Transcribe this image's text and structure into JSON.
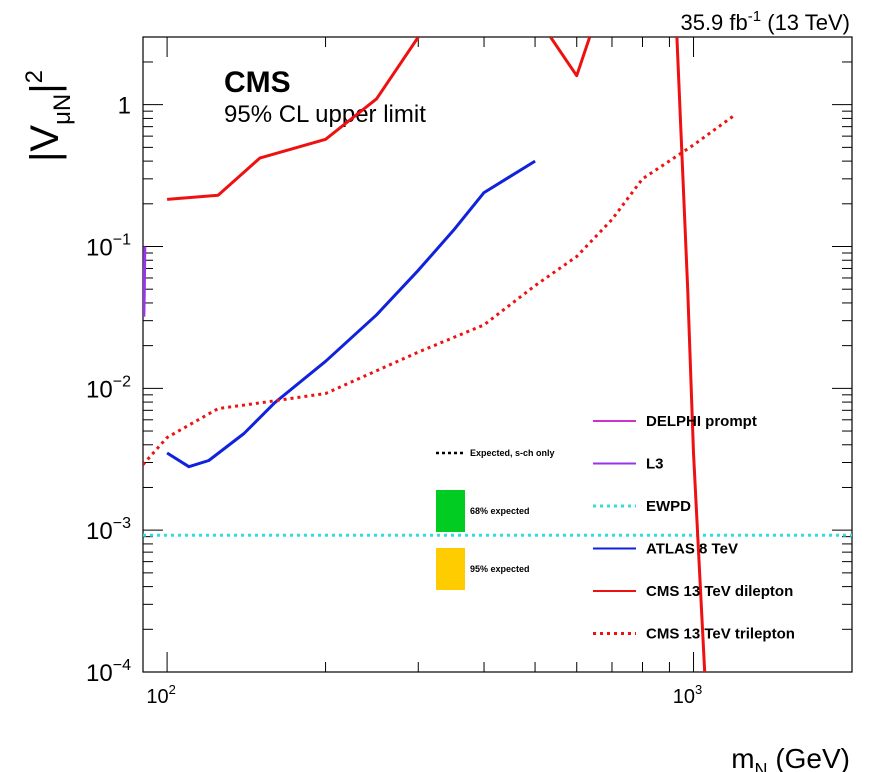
{
  "header": {
    "lumi": "35.9",
    "lumi_unit": "fb",
    "lumi_exp": "-1",
    "energy": "(13 TeV)"
  },
  "labels": {
    "experiment": "CMS",
    "subtitle": "95% CL upper limit",
    "ylabel_main": "V",
    "ylabel_sub": "μN",
    "ylabel_exp": "2",
    "xlabel_main": "m",
    "xlabel_sub": "N",
    "xlabel_unit": "(GeV)"
  },
  "chart_data": {
    "type": "line",
    "title": "",
    "xlabel": "m_N (GeV)",
    "ylabel": "|V_μN|^2",
    "xscale": "log",
    "yscale": "log",
    "xlim": [
      90,
      2000
    ],
    "ylim": [
      0.0001,
      3
    ],
    "x_ticks": [
      {
        "value": 100,
        "base": "10",
        "exp": "2"
      },
      {
        "value": 1000,
        "base": "10",
        "exp": "3"
      }
    ],
    "y_ticks": [
      {
        "value": 0.0001,
        "base": "10",
        "exp": "−4"
      },
      {
        "value": 0.001,
        "base": "10",
        "exp": "−3"
      },
      {
        "value": 0.01,
        "base": "10",
        "exp": "−2"
      },
      {
        "value": 0.1,
        "base": "10",
        "exp": "−1"
      },
      {
        "value": 1,
        "base": "1",
        "exp": ""
      }
    ],
    "legend_position": "bottom-right",
    "series": [
      {
        "name": "DELPHI prompt",
        "color": "#cc33cc",
        "style": "solid",
        "points": []
      },
      {
        "name": "L3",
        "color": "#9933ee",
        "style": "solid",
        "points": [
          [
            90.3,
            0.032
          ],
          [
            90.5,
            0.05
          ],
          [
            90.7,
            0.1
          ]
        ]
      },
      {
        "name": "EWPD",
        "color": "#33dddd",
        "style": "dotted",
        "points": [
          [
            90,
            0.00092
          ],
          [
            2000,
            0.00092
          ]
        ]
      },
      {
        "name": "ATLAS 8 TeV",
        "color": "#1122dd",
        "style": "solid",
        "points": [
          [
            100,
            0.0035
          ],
          [
            110,
            0.0028
          ],
          [
            120,
            0.0031
          ],
          [
            140,
            0.0048
          ],
          [
            160,
            0.0079
          ],
          [
            200,
            0.0155
          ],
          [
            250,
            0.033
          ],
          [
            300,
            0.068
          ],
          [
            350,
            0.13
          ],
          [
            400,
            0.24
          ],
          [
            500,
            0.4
          ]
        ]
      },
      {
        "name": "CMS 13 TeV dilepton",
        "color": "#ee1111",
        "style": "solid",
        "points": [
          [
            100,
            0.215
          ],
          [
            125,
            0.23
          ],
          [
            150,
            0.42
          ],
          [
            200,
            0.57
          ],
          [
            250,
            1.1
          ],
          [
            300,
            3.0
          ]
        ]
      },
      {
        "name": "CMS 13 TeV dilepton",
        "color": "#ee1111",
        "style": "solid",
        "points": [
          [
            535,
            3.0
          ],
          [
            600,
            1.6
          ],
          [
            635,
            3.0
          ]
        ]
      },
      {
        "name": "CMS 13 TeV dilepton",
        "color": "#ee1111",
        "style": "solid",
        "points": [
          [
            930,
            3.0
          ],
          [
            975,
            0.05
          ],
          [
            1000,
            0.0035
          ],
          [
            1050,
            0.0001
          ]
        ]
      },
      {
        "name": "CMS 13 TeV trilepton",
        "color": "#ee1111",
        "style": "dotted",
        "points": [
          [
            90,
            0.0029
          ],
          [
            100,
            0.0045
          ],
          [
            125,
            0.0072
          ],
          [
            150,
            0.0079
          ],
          [
            200,
            0.0092
          ],
          [
            300,
            0.018
          ],
          [
            400,
            0.028
          ],
          [
            500,
            0.053
          ],
          [
            600,
            0.085
          ],
          [
            700,
            0.155
          ],
          [
            800,
            0.3
          ],
          [
            1000,
            0.52
          ],
          [
            1200,
            0.85
          ]
        ]
      }
    ]
  },
  "legend": {
    "left_items": [
      {
        "label": "Expected, s-ch only",
        "kind": "dotted",
        "color": "#000000"
      },
      {
        "label": "68% expected",
        "kind": "box",
        "color": "#00cc22"
      },
      {
        "label": "95% expected",
        "kind": "box",
        "color": "#ffcc00"
      }
    ],
    "right_items": [
      {
        "label": "DELPHI prompt",
        "kind": "solid",
        "color": "#cc33cc"
      },
      {
        "label": "L3",
        "kind": "solid",
        "color": "#9933ee"
      },
      {
        "label": "EWPD",
        "kind": "dotted",
        "color": "#33dddd"
      },
      {
        "label": "ATLAS 8 TeV",
        "kind": "solid",
        "color": "#1122dd"
      },
      {
        "label": "CMS 13 TeV dilepton",
        "kind": "solid",
        "color": "#ee1111"
      },
      {
        "label": "CMS 13 TeV trilepton",
        "kind": "dotted",
        "color": "#ee1111"
      }
    ]
  }
}
